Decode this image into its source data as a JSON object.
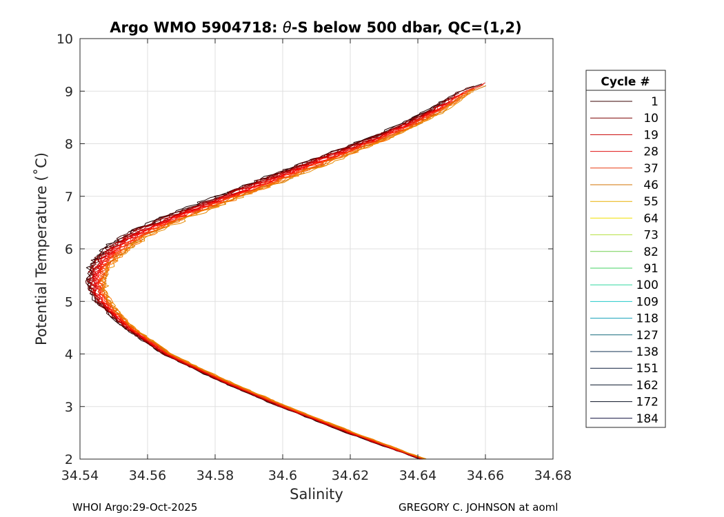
{
  "chart_data": {
    "type": "line",
    "title_prefix": "Argo WMO 5904718: ",
    "title_symbol": "θ",
    "title_suffix": "-S below 500 dbar,  QC=(1,2)",
    "xlabel": "Salinity",
    "ylabel": "Potential Temperature (˚C)",
    "xlim": [
      34.54,
      34.68
    ],
    "ylim": [
      2,
      10
    ],
    "xticks": [
      "34.54",
      "34.56",
      "34.58",
      "34.6",
      "34.62",
      "34.64",
      "34.66",
      "34.68"
    ],
    "yticks": [
      "2",
      "3",
      "4",
      "5",
      "6",
      "7",
      "8",
      "9",
      "10"
    ],
    "grid": true,
    "legend_position": "right, outside plot",
    "legend": {
      "title": "Cycle #",
      "entries": [
        {
          "label": "1",
          "color": "#3a0000"
        },
        {
          "label": "10",
          "color": "#7a0000"
        },
        {
          "label": "19",
          "color": "#c80000"
        },
        {
          "label": "28",
          "color": "#e01010"
        },
        {
          "label": "37",
          "color": "#e83a10"
        },
        {
          "label": "46",
          "color": "#d07000"
        },
        {
          "label": "55",
          "color": "#e8b000"
        },
        {
          "label": "64",
          "color": "#f0e000"
        },
        {
          "label": "73",
          "color": "#b4e040"
        },
        {
          "label": "82",
          "color": "#70d050"
        },
        {
          "label": "91",
          "color": "#40d060"
        },
        {
          "label": "100",
          "color": "#30d8a0"
        },
        {
          "label": "109",
          "color": "#20c8c8"
        },
        {
          "label": "118",
          "color": "#10a0b8"
        },
        {
          "label": "127",
          "color": "#106878"
        },
        {
          "label": "138",
          "color": "#103050"
        },
        {
          "label": "151",
          "color": "#0a1a3a"
        },
        {
          "label": "162",
          "color": "#081428"
        },
        {
          "label": "172",
          "color": "#060e20"
        },
        {
          "label": "184",
          "color": "#0a0a3a"
        }
      ]
    },
    "profile_envelope": {
      "theta": [
        2.0,
        2.5,
        3.0,
        3.5,
        4.0,
        4.5,
        4.8,
        5.0,
        5.2,
        5.4,
        5.6,
        5.8,
        6.0,
        6.2,
        6.4,
        6.6,
        6.8,
        7.0,
        7.2,
        7.4,
        7.6,
        7.8,
        8.0,
        8.2,
        8.4,
        8.6,
        8.8,
        9.0,
        9.15
      ],
      "salinity_mean": [
        34.6415,
        34.6202,
        34.6002,
        34.582,
        34.5658,
        34.5546,
        34.5496,
        34.5468,
        34.5452,
        34.5448,
        34.5455,
        34.5475,
        34.5508,
        34.5554,
        34.5613,
        34.5685,
        34.5765,
        34.5845,
        34.5925,
        34.6005,
        34.6085,
        34.6165,
        34.6245,
        34.632,
        34.6385,
        34.6445,
        34.6495,
        34.654,
        34.6605
      ],
      "spread": [
        0.0008,
        0.0012,
        0.0012,
        0.0012,
        0.0013,
        0.0014,
        0.0018,
        0.0022,
        0.0025,
        0.0028,
        0.003,
        0.0033,
        0.0036,
        0.0038,
        0.004,
        0.004,
        0.004,
        0.004,
        0.004,
        0.004,
        0.004,
        0.0036,
        0.0033,
        0.003,
        0.0028,
        0.0025,
        0.0022,
        0.002,
        0.0015
      ]
    },
    "plotted_cycle_colors": [
      "#1a0000",
      "#3a0000",
      "#5a0000",
      "#7a0000",
      "#8a0000",
      "#a00000",
      "#b00000",
      "#c80000",
      "#d80000",
      "#e00000",
      "#e81010",
      "#f01818",
      "#ff0000",
      "#ff2000",
      "#e83a10",
      "#ff3c00",
      "#f05020",
      "#ff5a00",
      "#e86000",
      "#d07000",
      "#ff7800",
      "#e88a00"
    ]
  },
  "footer": {
    "left": "WHOI Argo:29-Oct-2025",
    "right": "GREGORY C. JOHNSON at aoml"
  }
}
